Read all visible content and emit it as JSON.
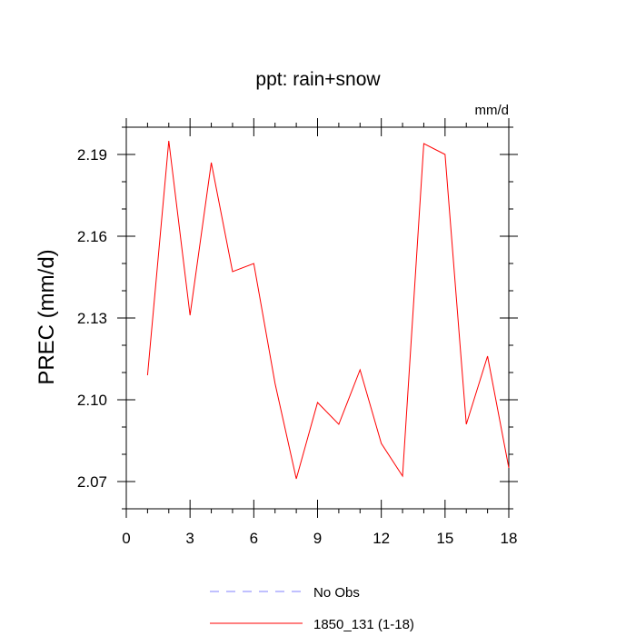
{
  "chart_data": {
    "type": "line",
    "title": "ppt: rain+snow",
    "units": "mm/d",
    "ylabel": "PREC  (mm/d)",
    "xlabel": "",
    "xlim": [
      0,
      18
    ],
    "ylim": [
      2.06,
      2.2
    ],
    "x_ticks": [
      0,
      3,
      6,
      9,
      12,
      15,
      18
    ],
    "y_ticks": [
      2.07,
      2.1,
      2.13,
      2.16,
      2.19
    ],
    "x_tick_labels": [
      "0",
      "3",
      "6",
      "9",
      "12",
      "15",
      "18"
    ],
    "y_tick_labels": [
      "2.07",
      "2.10",
      "2.13",
      "2.16",
      "2.19"
    ],
    "grid": false,
    "legend_position": "bottom",
    "series": [
      {
        "name": "1850_131 (1-18)",
        "color": "#ff0000",
        "style": "solid",
        "x": [
          1,
          2,
          3,
          4,
          5,
          6,
          7,
          8,
          9,
          10,
          11,
          12,
          13,
          14,
          15,
          16,
          17,
          18
        ],
        "y": [
          2.109,
          2.195,
          2.131,
          2.187,
          2.147,
          2.15,
          2.106,
          2.071,
          2.099,
          2.091,
          2.111,
          2.084,
          2.072,
          2.194,
          2.19,
          2.091,
          2.116,
          2.075
        ]
      }
    ],
    "legend": [
      {
        "label": "No Obs",
        "color": "#8080ff",
        "style": "dashed"
      },
      {
        "label": "1850_131 (1-18)",
        "color": "#ff0000",
        "style": "solid"
      }
    ]
  }
}
